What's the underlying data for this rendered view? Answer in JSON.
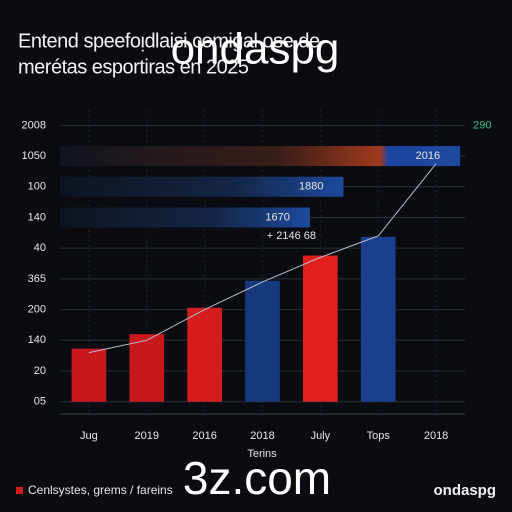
{
  "chart_data": {
    "type": "bar",
    "title": "Entend speefoᴉdlaisi comigal ose de",
    "subtitle": "merétas esportiras en 2025",
    "xlabel": "Terins",
    "categories": [
      "Jug",
      "2019",
      "2016",
      "2018",
      "July",
      "Tops",
      "2018"
    ],
    "ylim": [
      -0.4,
      9.5
    ],
    "yticks": [
      {
        "value": 0,
        "label": "05"
      },
      {
        "value": 1,
        "label": "20"
      },
      {
        "value": 2,
        "label": "140"
      },
      {
        "value": 3,
        "label": "200"
      },
      {
        "value": 4,
        "label": "365"
      },
      {
        "value": 5,
        "label": "40"
      },
      {
        "value": 6,
        "label": "140"
      },
      {
        "value": 7,
        "label": "100"
      },
      {
        "value": 8,
        "label": "1050"
      },
      {
        "value": 9,
        "label": "2008"
      }
    ],
    "grid": true,
    "series": [
      {
        "name": "Cenlsystes, grems / fareins",
        "color": "#d61d1d",
        "colors": [
          "#c9181c",
          "#c9181c",
          "#d61d1d",
          "#173a7e",
          "#e11f1f",
          "#1b3f8f",
          null
        ],
        "values": [
          1.73,
          2.2,
          3.06,
          3.94,
          4.76,
          5.37,
          null
        ]
      }
    ],
    "line": {
      "color": "#b8bcc8",
      "values": [
        1.6,
        2.0,
        3.0,
        3.9,
        4.7,
        5.4,
        7.75
      ]
    },
    "hbars": {
      "xlim": [
        0,
        100
      ],
      "y": [
        8,
        7,
        6
      ],
      "values": [
        98.8,
        70,
        61.7
      ],
      "value_labels": [
        "2016",
        "1880",
        "1670"
      ],
      "color": "#1d4a9e"
    },
    "annotations": [
      {
        "text": "+ 2146 68",
        "x": 3.5,
        "y": 5.4
      },
      {
        "text": "290",
        "x": 6.8,
        "y": 9,
        "color": "#3fc28a"
      }
    ],
    "watermarks": [
      "ondaspg",
      "3z.com"
    ],
    "brand": "ondaspg"
  }
}
